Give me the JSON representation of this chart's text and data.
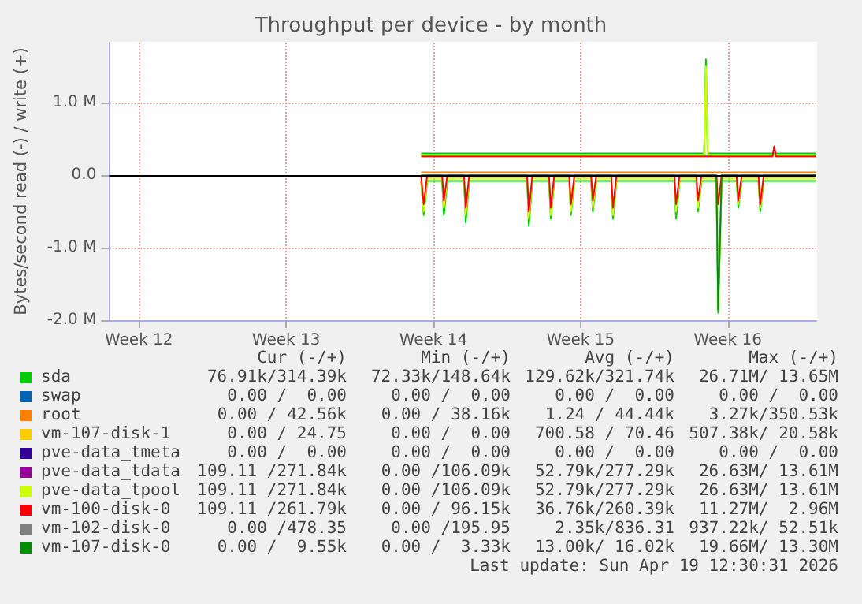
{
  "chart_data": {
    "type": "line",
    "title": "Throughput per device - by month",
    "ylabel": "Bytes/second read (-) / write (+)",
    "xlim": [
      "2026-03-14T14:00",
      "2026-04-17T05:00"
    ],
    "xticks": [
      {
        "value": "2026-03-16",
        "label": "Week 12"
      },
      {
        "value": "2026-03-23",
        "label": "Week 13"
      },
      {
        "value": "2026-03-30",
        "label": "Week 14"
      },
      {
        "value": "2026-04-06",
        "label": "Week 15"
      },
      {
        "value": "2026-04-13",
        "label": "Week 16"
      }
    ],
    "ylim": [
      -2.0,
      1.83
    ],
    "yticks": [
      {
        "value": -2,
        "label": "-2.0 M"
      },
      {
        "value": -1,
        "label": "-1.0 M"
      },
      {
        "value": 0,
        "label": "0.0"
      },
      {
        "value": 1,
        "label": "1.0 M"
      }
    ],
    "grid": true,
    "legend": "bottom",
    "marker": "none",
    "ref_lines": [
      {
        "axis": "y",
        "value": 0,
        "color": "#000000"
      }
    ],
    "series": [
      {
        "name": "sda",
        "color": "#00cc00",
        "x": [
          "2026-03-29T10:00",
          "2026-04-11T21:00",
          "2026-04-11T23:00",
          "2026-04-12T01:00",
          "2026-04-17T05:00"
        ],
        "values": [
          0.3,
          0.3,
          1.6,
          0.3,
          0.3
        ]
      },
      {
        "color": "#00cc00",
        "x": [
          "2026-03-29T10:00",
          "2026-03-29T13:00",
          "2026-03-29T17:00",
          "2026-03-30T10:00",
          "2026-03-30T12:00",
          "2026-03-30T16:00",
          "2026-03-31T11:00",
          "2026-03-31T13:00",
          "2026-03-31T17:00",
          "2026-04-03T11:00",
          "2026-04-03T13:00",
          "2026-04-03T17:00",
          "2026-04-04T12:00",
          "2026-04-04T14:00",
          "2026-04-04T18:00",
          "2026-04-05T11:00",
          "2026-04-05T13:00",
          "2026-04-05T17:00",
          "2026-04-06T12:00",
          "2026-04-06T14:00",
          "2026-04-06T18:00",
          "2026-04-07T11:00",
          "2026-04-07T13:00",
          "2026-04-07T17:00",
          "2026-04-10T11:00",
          "2026-04-10T13:00",
          "2026-04-10T17:00",
          "2026-04-11T12:00",
          "2026-04-11T14:00",
          "2026-04-11T18:00",
          "2026-04-12T11:00",
          "2026-04-12T13:00",
          "2026-04-12T17:00",
          "2026-04-13T10:00",
          "2026-04-13T12:00",
          "2026-04-13T16:00",
          "2026-04-14T11:00",
          "2026-04-14T13:00",
          "2026-04-14T17:00",
          "2026-04-17T05:00"
        ],
        "values": [
          -0.08,
          -0.55,
          -0.08,
          -0.08,
          -0.55,
          -0.08,
          -0.08,
          -0.65,
          -0.08,
          -0.08,
          -0.7,
          -0.08,
          -0.08,
          -0.6,
          -0.08,
          -0.08,
          -0.55,
          -0.08,
          -0.08,
          -0.5,
          -0.08,
          -0.08,
          -0.6,
          -0.08,
          -0.08,
          -0.6,
          -0.08,
          -0.08,
          -0.5,
          -0.08,
          -0.08,
          -1.9,
          -0.08,
          -0.08,
          -0.45,
          -0.08,
          -0.08,
          -0.5,
          -0.08,
          -0.08
        ]
      },
      {
        "name": "swap",
        "color": "#0066b3"
      },
      {
        "name": "root",
        "color": "#ff8000",
        "x": [
          "2026-03-29T10:00",
          "2026-04-17T05:00"
        ],
        "values": [
          0.04,
          0.04
        ]
      },
      {
        "name": "vm-107-disk-1",
        "color": "#ffcc00"
      },
      {
        "name": "pve-data_tmeta",
        "color": "#330099"
      },
      {
        "name": "pve-data_tdata",
        "color": "#990099"
      },
      {
        "name": "pve-data_tpool",
        "color": "#ccff00",
        "x": [
          "2026-03-29T10:00",
          "2026-04-11T21:00",
          "2026-04-11T23:00",
          "2026-04-12T01:00",
          "2026-04-17T05:00"
        ],
        "values": [
          0.28,
          0.28,
          1.5,
          0.28,
          0.28
        ]
      },
      {
        "color": "#ccff00",
        "x": [
          "2026-03-29T10:00",
          "2026-03-29T13:00",
          "2026-03-29T17:00",
          "2026-03-30T10:00",
          "2026-03-30T12:00",
          "2026-03-30T16:00",
          "2026-03-31T11:00",
          "2026-03-31T13:00",
          "2026-03-31T17:00",
          "2026-04-03T11:00",
          "2026-04-03T13:00",
          "2026-04-03T17:00",
          "2026-04-04T12:00",
          "2026-04-04T14:00",
          "2026-04-04T18:00",
          "2026-04-05T11:00",
          "2026-04-05T13:00",
          "2026-04-05T17:00",
          "2026-04-06T12:00",
          "2026-04-06T14:00",
          "2026-04-06T18:00",
          "2026-04-07T11:00",
          "2026-04-07T13:00",
          "2026-04-07T17:00",
          "2026-04-10T11:00",
          "2026-04-10T13:00",
          "2026-04-10T17:00",
          "2026-04-11T12:00",
          "2026-04-11T14:00",
          "2026-04-11T18:00",
          "2026-04-12T11:00",
          "2026-04-12T13:00",
          "2026-04-12T17:00",
          "2026-04-13T10:00",
          "2026-04-13T12:00",
          "2026-04-13T16:00",
          "2026-04-14T11:00",
          "2026-04-14T13:00",
          "2026-04-14T17:00",
          "2026-04-17T05:00"
        ],
        "values": [
          -0.04,
          -0.5,
          -0.04,
          -0.04,
          -0.45,
          -0.04,
          -0.04,
          -0.55,
          -0.04,
          -0.04,
          -0.6,
          -0.04,
          -0.04,
          -0.55,
          -0.04,
          -0.04,
          -0.5,
          -0.04,
          -0.04,
          -0.45,
          -0.04,
          -0.04,
          -0.55,
          -0.04,
          -0.04,
          -0.5,
          -0.04,
          -0.04,
          -0.45,
          -0.04,
          -0.04,
          -1.8,
          -0.04,
          -0.04,
          -0.4,
          -0.04,
          -0.04,
          -0.45,
          -0.04,
          -0.04
        ]
      },
      {
        "name": "vm-100-disk-0",
        "color": "#ff0000",
        "x": [
          "2026-03-29T10:00",
          "2026-04-15T03:00",
          "2026-04-15T05:00",
          "2026-04-15T07:00",
          "2026-04-17T05:00"
        ],
        "values": [
          0.26,
          0.26,
          0.4,
          0.26,
          0.26
        ]
      },
      {
        "color": "#ff0000",
        "x": [
          "2026-03-29T10:00",
          "2026-03-29T13:00",
          "2026-03-29T17:00",
          "2026-03-30T10:00",
          "2026-03-30T12:00",
          "2026-03-30T16:00",
          "2026-03-31T11:00",
          "2026-03-31T13:00",
          "2026-03-31T17:00",
          "2026-04-03T11:00",
          "2026-04-03T13:00",
          "2026-04-03T17:00",
          "2026-04-04T12:00",
          "2026-04-04T14:00",
          "2026-04-04T18:00",
          "2026-04-05T11:00",
          "2026-04-05T13:00",
          "2026-04-05T17:00",
          "2026-04-06T12:00",
          "2026-04-06T14:00",
          "2026-04-06T18:00",
          "2026-04-07T11:00",
          "2026-04-07T13:00",
          "2026-04-07T17:00",
          "2026-04-10T11:00",
          "2026-04-10T13:00",
          "2026-04-10T17:00",
          "2026-04-11T12:00",
          "2026-04-11T14:00",
          "2026-04-11T18:00",
          "2026-04-12T11:00",
          "2026-04-12T13:00",
          "2026-04-12T17:00",
          "2026-04-13T10:00",
          "2026-04-13T12:00",
          "2026-04-13T16:00",
          "2026-04-14T11:00",
          "2026-04-14T13:00",
          "2026-04-14T17:00",
          "2026-04-17T05:00"
        ],
        "values": [
          0,
          -0.4,
          0,
          0,
          -0.35,
          0,
          0,
          -0.45,
          0,
          0,
          -0.5,
          0,
          0,
          -0.45,
          0,
          0,
          -0.4,
          0,
          0,
          -0.35,
          0,
          0,
          -0.45,
          0,
          0,
          -0.4,
          0,
          0,
          -0.35,
          0,
          0,
          -0.4,
          0,
          0,
          -0.35,
          0,
          0,
          -0.4,
          0,
          0
        ]
      },
      {
        "name": "vm-102-disk-0",
        "color": "#808080"
      },
      {
        "name": "vm-107-disk-0",
        "color": "#008f00",
        "x": [
          "2026-03-29T10:00",
          "2026-04-12T11:00",
          "2026-04-12T13:00",
          "2026-04-12T17:00",
          "2026-04-17T05:00"
        ],
        "values": [
          0,
          0,
          -1.85,
          0,
          0
        ]
      }
    ],
    "annotations": [
      "Cur (-/+)",
      "Min (-/+)",
      "Avg (-/+)",
      "Max (-/+)",
      "76.91k/314.39k",
      "72.33k/148.64k",
      "129.62k/321.74k",
      "26.71M/ 13.65M",
      "0.00 /  0.00",
      "0.00 /  0.00",
      "0.00 /  0.00",
      "0.00 /  0.00",
      "0.00 / 42.56k",
      "0.00 / 38.16k",
      "1.24 / 44.44k",
      "3.27k/350.53k",
      "0.00 / 24.75",
      "0.00 /  0.00",
      "700.58 / 70.46",
      "507.38k/ 20.58k",
      "0.00 /  0.00",
      "0.00 /  0.00",
      "0.00 /  0.00",
      "0.00 /  0.00",
      "109.11 /271.84k",
      "0.00 /106.09k",
      "52.79k/277.29k",
      "26.63M/ 13.61M",
      "109.11 /271.84k",
      "0.00 /106.09k",
      "52.79k/277.29k",
      "26.63M/ 13.61M",
      "109.11 /261.79k",
      "0.00 / 96.15k",
      "36.76k/260.39k",
      "11.27M/  2.96M",
      "0.00 /478.35",
      "0.00 /195.95",
      "2.35k/836.31",
      "937.22k/ 52.51k",
      "0.00 /  9.55k",
      "0.00 /  3.33k",
      "13.00k/ 16.02k",
      "19.66M/ 13.30M",
      "Last update: Sun Apr 19 12:30:31 2026"
    ]
  }
}
